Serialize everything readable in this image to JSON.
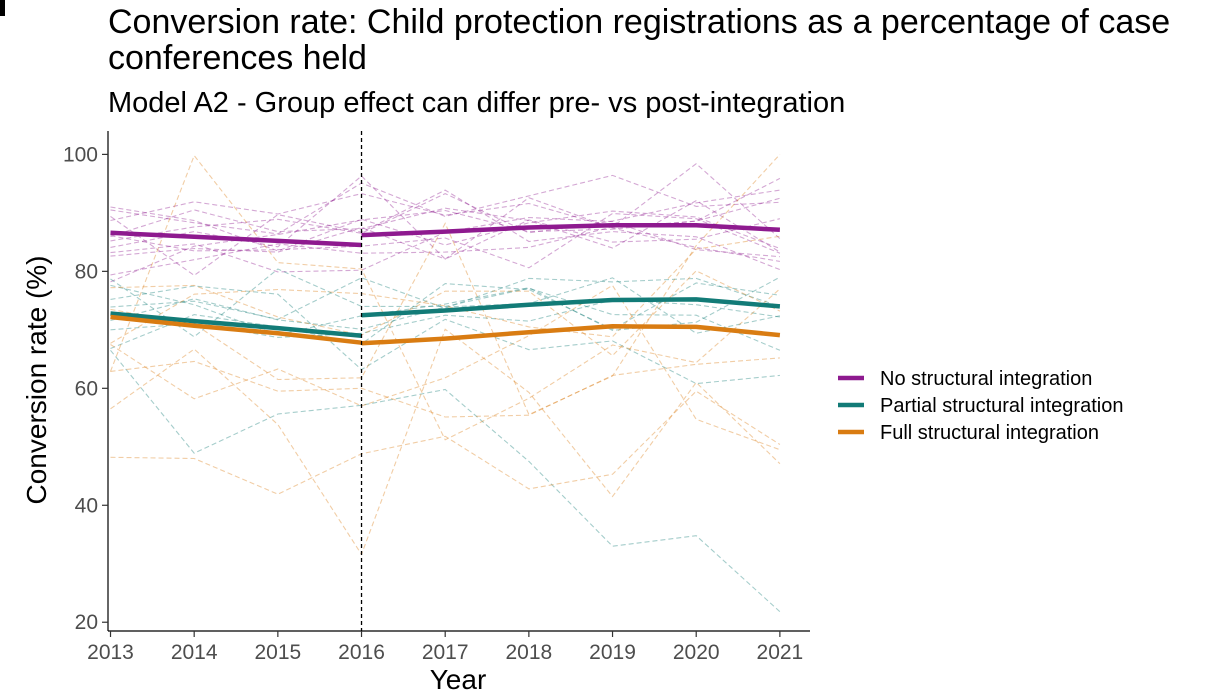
{
  "chart_data": {
    "type": "line",
    "title": "Conversion rate: Child protection registrations as a percentage of case conferences held",
    "subtitle": "Model A2 - Group effect can differ pre- vs post-integration",
    "xlabel": "Year",
    "ylabel": "Conversion rate (%)",
    "x": [
      2013,
      2014,
      2015,
      2016,
      2017,
      2018,
      2019,
      2020,
      2021
    ],
    "x_ticks": [
      "2013",
      "2014",
      "2015",
      "2016",
      "2017",
      "2018",
      "2019",
      "2020",
      "2021"
    ],
    "y_ticks": [
      "20",
      "40",
      "60",
      "80",
      "100"
    ],
    "xlim": [
      2012.97,
      2021.36
    ],
    "ylim": [
      18.5,
      104
    ],
    "integration_year": 2016,
    "grid": false,
    "legend_position": "right",
    "colors": {
      "no": "#8e1a8f",
      "partial": "#127b77",
      "full": "#d97c12"
    },
    "series": [
      {
        "name": "No structural integration",
        "color": "#8e1a8f",
        "pre": {
          "x": [
            2013,
            2014,
            2015,
            2016
          ],
          "y": [
            86.6,
            85.9,
            85.2,
            84.5
          ]
        },
        "post": {
          "x": [
            2016,
            2017,
            2018,
            2019,
            2020,
            2021
          ],
          "y": [
            86.2,
            86.8,
            87.5,
            87.9,
            87.9,
            87.1
          ]
        }
      },
      {
        "name": "Partial structural integration",
        "color": "#127b77",
        "pre": {
          "x": [
            2013,
            2014,
            2015,
            2016
          ],
          "y": [
            72.8,
            71.5,
            70.3,
            69.0
          ]
        },
        "post": {
          "x": [
            2016,
            2017,
            2018,
            2019,
            2020,
            2021
          ],
          "y": [
            72.5,
            73.3,
            74.3,
            75.1,
            75.2,
            74.0
          ]
        }
      },
      {
        "name": "Full structural integration",
        "color": "#d97c12",
        "pre": {
          "x": [
            2013,
            2014,
            2015,
            2016
          ],
          "y": [
            72.2,
            70.7,
            69.4,
            67.8
          ]
        },
        "post": {
          "x": [
            2016,
            2017,
            2018,
            2019,
            2020,
            2021
          ],
          "y": [
            67.7,
            68.5,
            69.6,
            70.6,
            70.5,
            69.1
          ]
        }
      }
    ],
    "background_lines": [
      {
        "group": "no",
        "y": [
          90.5,
          88.3,
          86.4,
          95.1,
          89.4,
          92.9,
          96.4,
          91.1,
          91.8
        ]
      },
      {
        "group": "no",
        "y": [
          88.7,
          91.9,
          89.8,
          93.3,
          89.6,
          91.6,
          87.5,
          88.6,
          95.9
        ]
      },
      {
        "group": "no",
        "y": [
          85.2,
          87.6,
          88.9,
          86.5,
          93.3,
          86.6,
          88.6,
          91.7,
          93.9
        ]
      },
      {
        "group": "no",
        "y": [
          89.4,
          79.3,
          89.7,
          86.7,
          93.9,
          85.1,
          86.8,
          85.9,
          80.3
        ]
      },
      {
        "group": "no",
        "y": [
          86.0,
          90.5,
          86.8,
          87.3,
          90.8,
          88.7,
          84.0,
          92.1,
          83.3
        ]
      },
      {
        "group": "no",
        "y": [
          91.0,
          88.7,
          83.5,
          88.9,
          84.5,
          88.3,
          90.3,
          89.3,
          83.9
        ]
      },
      {
        "group": "no",
        "y": [
          86.1,
          83.5,
          83.7,
          84.3,
          85.7,
          80.6,
          89.9,
          89.0,
          83.1
        ]
      },
      {
        "group": "no",
        "y": [
          79.4,
          82.0,
          84.7,
          83.1,
          83.3,
          84.1,
          87.6,
          98.4,
          85.6
        ]
      },
      {
        "group": "no",
        "y": [
          82.6,
          83.9,
          83.3,
          87.5,
          82.1,
          92.6,
          87.4,
          84.1,
          81.7
        ]
      },
      {
        "group": "no",
        "y": [
          84.1,
          86.8,
          84.2,
          96.3,
          82.1,
          88.8,
          85.0,
          85.5,
          89.0
        ]
      },
      {
        "group": "no",
        "y": [
          83.2,
          84.7,
          79.9,
          80.2,
          86.7,
          89.2,
          88.5,
          83.7,
          82.5
        ]
      },
      {
        "group": "no",
        "y": [
          78.2,
          84.3,
          86.3,
          88.8,
          90.4,
          86.8,
          87.2,
          88.6,
          92.5
        ]
      },
      {
        "group": "partial",
        "y": [
          71.6,
          75.3,
          71.7,
          70.1,
          73.9,
          74.5,
          78.9,
          69.4,
          72.4
        ]
      },
      {
        "group": "partial",
        "y": [
          77.6,
          74.3,
          69.1,
          72.4,
          74.4,
          77.2,
          69.9,
          71.3,
          79.0
        ]
      },
      {
        "group": "partial",
        "y": [
          66.5,
          48.9,
          55.6,
          57.1,
          59.8,
          47.5,
          33.0,
          34.8,
          21.8
        ]
      },
      {
        "group": "partial",
        "y": [
          75.2,
          77.5,
          76.1,
          63.2,
          71.8,
          66.6,
          68.1,
          60.8,
          62.2
        ]
      },
      {
        "group": "partial",
        "y": [
          78.7,
          68.8,
          80.4,
          74.0,
          74.0,
          77.1,
          72.6,
          72.5,
          66.5
        ]
      },
      {
        "group": "partial",
        "y": [
          73.9,
          74.9,
          71.8,
          78.9,
          73.7,
          78.8,
          78.2,
          78.8,
          74.0
        ]
      },
      {
        "group": "partial",
        "y": [
          66.8,
          72.6,
          70.5,
          67.6,
          77.9,
          76.9,
          70.1,
          78.0,
          75.9
        ]
      },
      {
        "group": "partial",
        "y": [
          70.0,
          71.1,
          68.7,
          69.4,
          72.5,
          71.5,
          75.1,
          74.3,
          72.2
        ]
      },
      {
        "group": "full",
        "y": [
          48.2,
          48.0,
          41.9,
          48.8,
          51.8,
          42.8,
          45.3,
          59.5,
          50.4
        ]
      },
      {
        "group": "full",
        "y": [
          56.5,
          66.7,
          53.8,
          31.6,
          70.1,
          59.3,
          41.5,
          61.0,
          47.1
        ]
      },
      {
        "group": "full",
        "y": [
          67.5,
          58.2,
          63.3,
          57.0,
          61.8,
          69.0,
          77.6,
          54.7,
          49.5
        ]
      },
      {
        "group": "full",
        "y": [
          73.5,
          71.0,
          61.5,
          61.8,
          88.2,
          55.5,
          62.1,
          84.4,
          100.0
        ]
      },
      {
        "group": "full",
        "y": [
          62.9,
          99.8,
          81.5,
          80.4,
          51.2,
          58.3,
          67.4,
          64.4,
          77.0
        ]
      },
      {
        "group": "full",
        "y": [
          77.2,
          77.6,
          72.2,
          69.1,
          76.6,
          76.6,
          65.6,
          80.1,
          73.2
        ]
      },
      {
        "group": "full",
        "y": [
          67.7,
          76.1,
          76.9,
          76.2,
          74.1,
          70.5,
          68.8,
          83.8,
          86.0
        ]
      },
      {
        "group": "full",
        "y": [
          62.9,
          64.6,
          59.5,
          60.0,
          55.1,
          55.4,
          62.2,
          64.1,
          65.2
        ]
      }
    ]
  }
}
